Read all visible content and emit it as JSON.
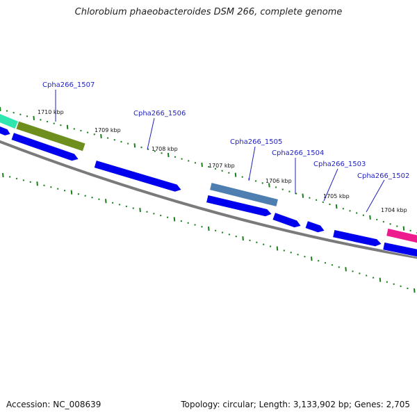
{
  "title": "Chlorobium phaeobacteroides DSM 266, complete genome",
  "footer": {
    "accession": "Accession: NC_008639",
    "summary": "Topology: circular; Length: 3,133,902 bp; Genes: 2,705"
  },
  "colors": {
    "cds": "#0000ee",
    "tick": "#1a7f1a",
    "backbone": "#7a7a7a",
    "label": "#1f1fbf",
    "cyan_gene": "#2fe6b0",
    "olive_gene": "#6e8f1e",
    "steelblue_gene": "#4f7fb0",
    "magenta_gene": "#ee1b8e"
  },
  "scale_labels": [
    "1710 kbp",
    "1709 kbp",
    "1708 kbp",
    "1707 kbp",
    "1706 kbp",
    "1705 kbp",
    "1704 kbp"
  ],
  "gene_labels": [
    "Cpha266_1507",
    "Cpha266_1506",
    "Cpha266_1505",
    "Cpha266_1504",
    "Cpha266_1503",
    "Cpha266_1502"
  ]
}
